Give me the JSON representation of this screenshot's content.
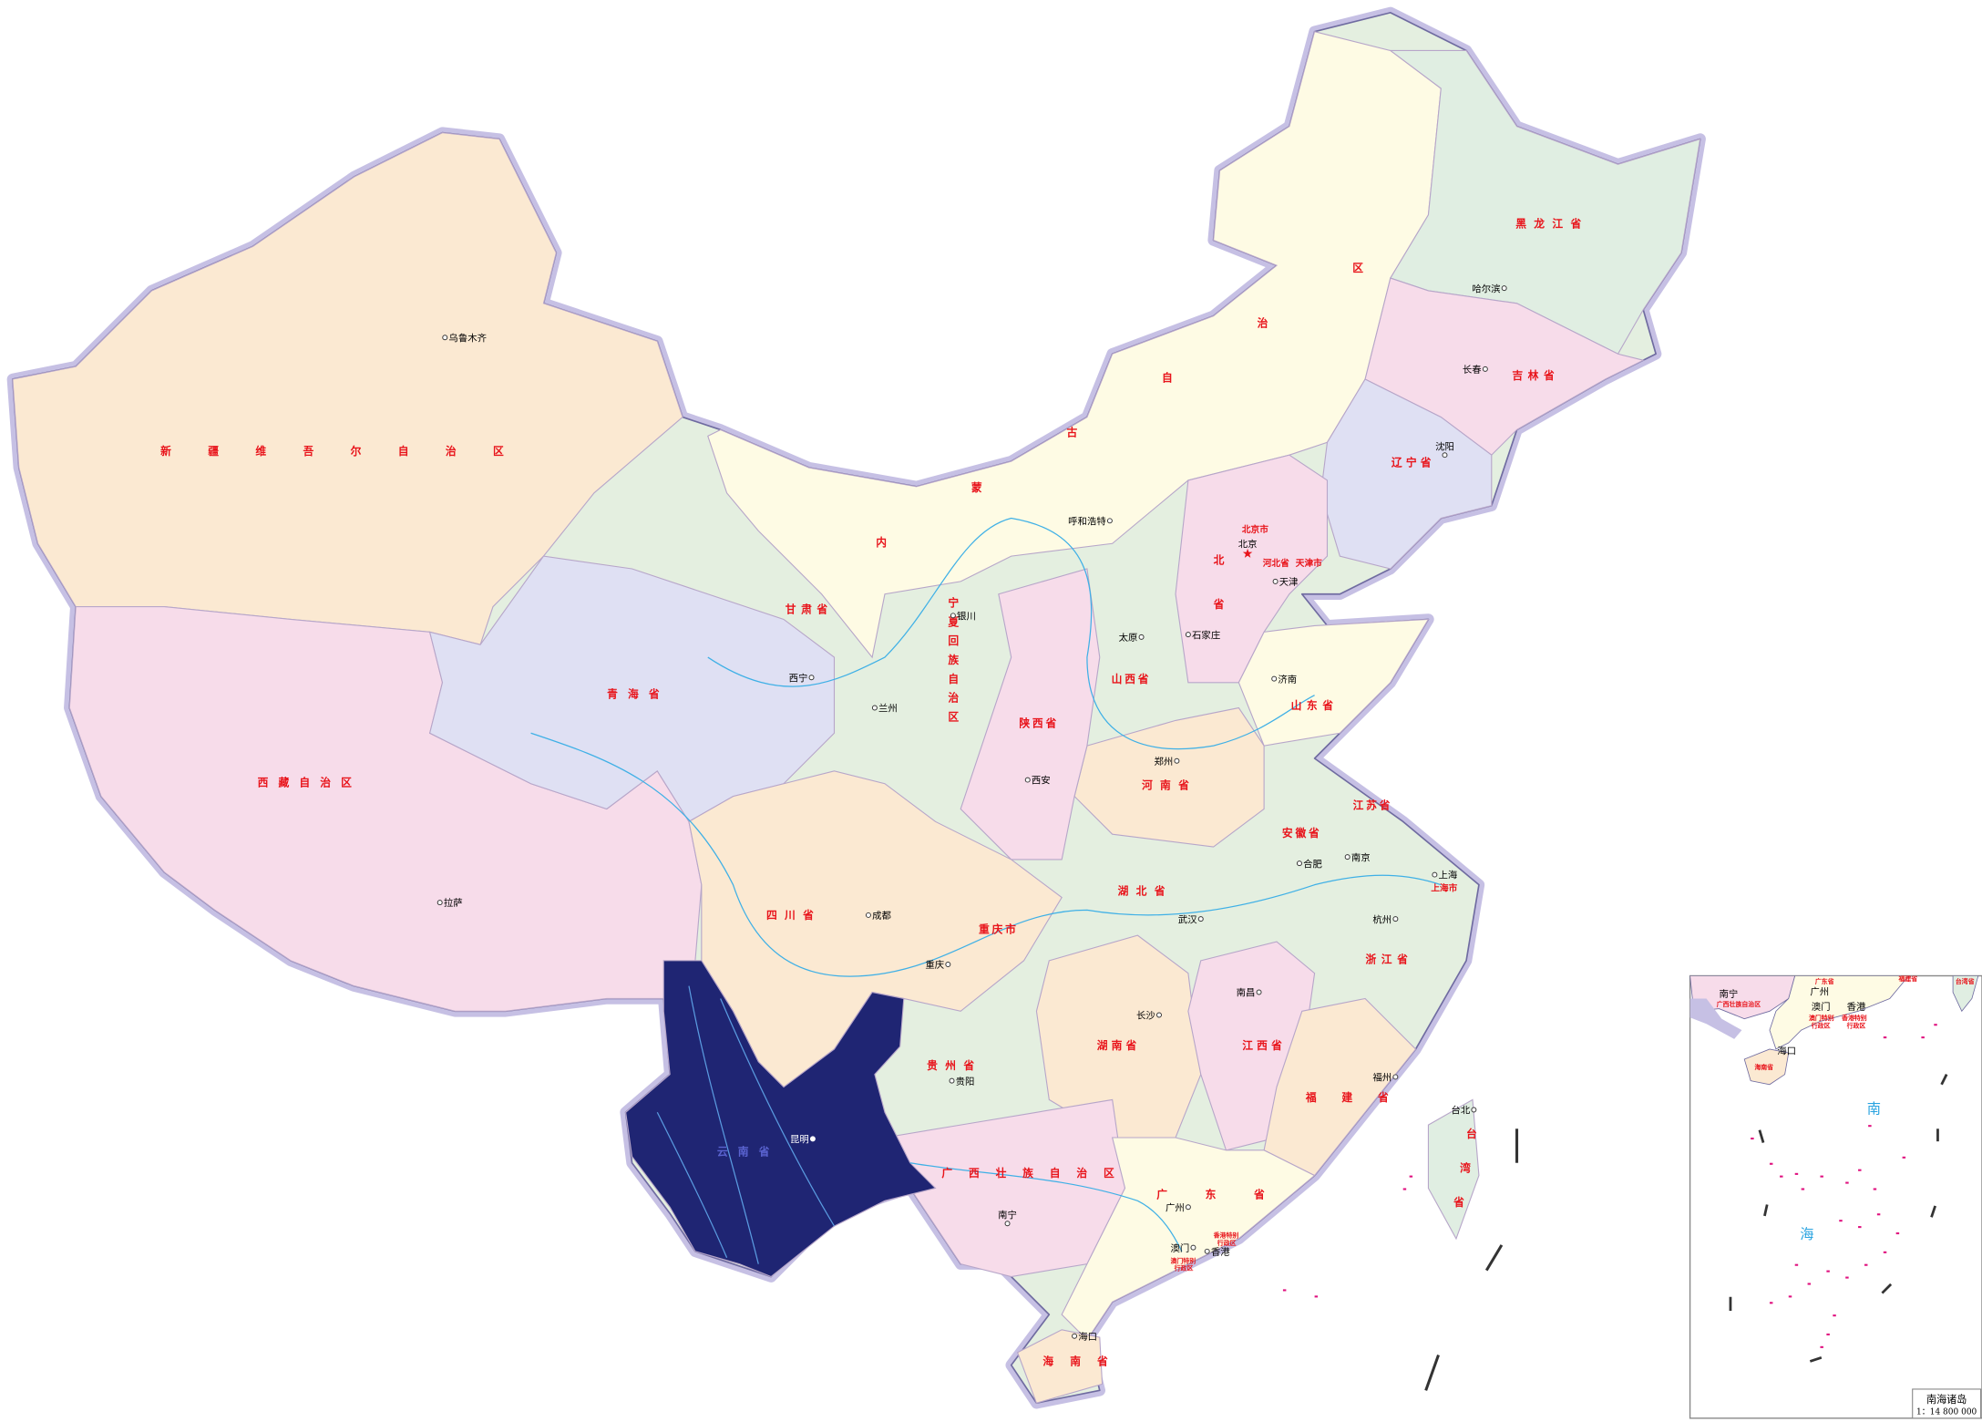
{
  "map": {
    "highlighted_province": "云南省",
    "colors": {
      "highlight": "#1f2573",
      "province_label": "#e8141b",
      "border_halo": "#b9b3dd",
      "river": "#3fb0e6",
      "island_marks": "#e0117f",
      "xinjiang": "#fbe9d2",
      "tibet": "#f7dcea",
      "qinghai": "#dfe0f3",
      "inner_mongolia": "#fefbe4",
      "northeast": "#e0eee2",
      "sichuan": "#fbe9d2"
    },
    "provinces": {
      "xinjiang": "新疆维吾尔自治区",
      "tibet": "西藏自治区",
      "qinghai": "青海省",
      "gansu": "甘肃省",
      "nmg": "内蒙古自治区",
      "heilongjiang": "黑龙江省",
      "jilin": "吉林省",
      "liaoning": "辽宁省",
      "beijing": "北京市",
      "tianjin": "天津市",
      "hebei": "北省",
      "hebei_small": "河北省",
      "shanxi": "山西省",
      "shaanxi": "陕西省",
      "ningxia": "宁夏回族自治区",
      "shandong": "山东省",
      "henan": "河南省",
      "jiangsu": "江苏省",
      "anhui": "安徽省",
      "shanghai": "上海市",
      "zhejiang": "浙江省",
      "hubei": "湖北省",
      "chongqing": "重庆市",
      "sichuan": "四川省",
      "guizhou": "贵州省",
      "hunan": "湖南省",
      "jiangxi": "江西省",
      "fujian": "福建省",
      "taiwan": "台湾省",
      "guangdong": "广东省",
      "guangxi": "广西壮族自治区",
      "hainan": "海南省",
      "yunnan": "云南省",
      "macau_sar": [
        "澳门特别",
        "行政区"
      ],
      "hk_sar": [
        "香港特别",
        "行政区"
      ]
    },
    "cities": {
      "urumqi": "乌鲁木齐",
      "lhasa": "拉萨",
      "xining": "西宁",
      "lanzhou": "兰州",
      "hohhot": "呼和浩特",
      "harbin": "哈尔滨",
      "changchun": "长春",
      "shenyang": "沈阳",
      "beijing": "北京",
      "tianjin": "天津",
      "shijiazhuang": "石家庄",
      "taiyuan": "太原",
      "yinchuan": "银川",
      "xian": "西安",
      "jinan": "济南",
      "zhengzhou": "郑州",
      "nanjing": "南京",
      "hefei": "合肥",
      "shanghai": "上海",
      "hangzhou": "杭州",
      "wuhan": "武汉",
      "chongqing": "重庆",
      "chengdu": "成都",
      "guiyang": "贵阳",
      "changsha": "长沙",
      "nanchang": "南昌",
      "fuzhou": "福州",
      "taipei": "台北",
      "guangzhou": "广州",
      "macau": "澳门",
      "hongkong": "香港",
      "nanning": "南宁",
      "haikou": "海口",
      "kunming": "昆明"
    },
    "inset": {
      "sea_name_1": "南",
      "sea_name_2": "海",
      "title": "南海诸岛",
      "scale": "1：14 800 000",
      "nanning": "南宁",
      "guangxi": "广西壮族自治区",
      "guangdong": "广东省",
      "guangzhou": "广州",
      "macau": "澳门",
      "hongkong": "香港",
      "macau_sar": [
        "澳门特别",
        "行政区"
      ],
      "hk_sar": [
        "香港特别",
        "行政区"
      ],
      "fujian": "福建省",
      "taiwan": "台湾省",
      "haikou": "海口",
      "hainan": "海南省"
    }
  }
}
